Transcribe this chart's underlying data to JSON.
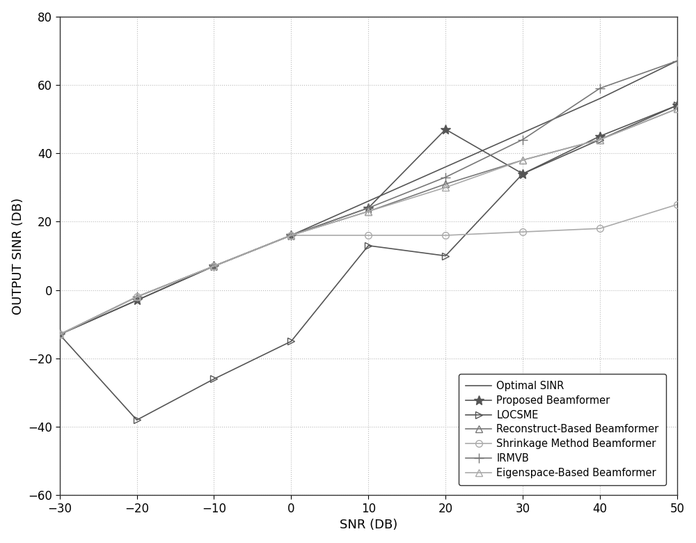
{
  "snr": [
    -30,
    -20,
    -10,
    0,
    10,
    20,
    30,
    40,
    50
  ],
  "optimal_sinr": [
    -13,
    -3,
    7,
    16,
    26,
    36,
    46,
    56,
    67
  ],
  "proposed_beamformer": [
    -13,
    -3,
    7,
    16,
    24,
    47,
    34,
    45,
    54
  ],
  "locsme": [
    -13,
    -38,
    -26,
    -15,
    13,
    10,
    34,
    44,
    54
  ],
  "reconstruct_based": [
    -13,
    -2,
    7,
    16,
    23,
    31,
    38,
    44,
    53
  ],
  "shrinkage_method": [
    -13,
    -2,
    7,
    16,
    16,
    16,
    17,
    18,
    25
  ],
  "irmvb": [
    -13,
    -2,
    7,
    16,
    24,
    33,
    44,
    59,
    67
  ],
  "eigenspace_based": [
    -13,
    -2,
    7,
    16,
    23,
    30,
    38,
    44,
    53
  ],
  "xlabel": "SNR (DB)",
  "ylabel": "OUTPUT SINR (DB)",
  "xlim": [
    -30,
    50
  ],
  "ylim": [
    -60,
    80
  ],
  "xticks": [
    -30,
    -20,
    -10,
    0,
    10,
    20,
    30,
    40,
    50
  ],
  "yticks": [
    -60,
    -40,
    -20,
    0,
    20,
    40,
    60,
    80
  ],
  "bg_color": "#ffffff",
  "grid_color": "#bbbbbb",
  "legend_labels": [
    "Optimal SINR",
    "Proposed Beamformer",
    "LOCSME",
    "Reconstruct-Based Beamformer",
    "Shrinkage Method Beamformer",
    "IRMVB",
    "Eigenspace-Based Beamformer"
  ]
}
